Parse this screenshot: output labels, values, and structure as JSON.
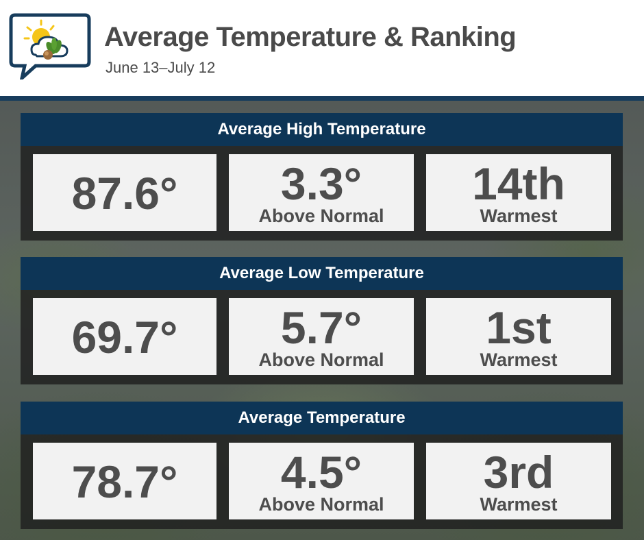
{
  "header": {
    "title": "Average Temperature & Ranking",
    "subtitle": "June 13–July 12",
    "logo_icon": "weather-speech-bubble-icon"
  },
  "colors": {
    "header_band": "#173c5c",
    "section_header": "#0d3556",
    "card_bg": "#f2f2f2",
    "card_text": "#4d4d4d",
    "title_text": "#4a4a4a"
  },
  "sections": [
    {
      "title": "Average High Temperature",
      "value": "87.6°",
      "departure": "3.3°",
      "departure_label": "Above Normal",
      "rank": "14th",
      "rank_label": "Warmest"
    },
    {
      "title": "Average Low Temperature",
      "value": "69.7°",
      "departure": "5.7°",
      "departure_label": "Above Normal",
      "rank": "1st",
      "rank_label": "Warmest"
    },
    {
      "title": "Average Temperature",
      "value": "78.7°",
      "departure": "4.5°",
      "departure_label": "Above Normal",
      "rank": "3rd",
      "rank_label": "Warmest"
    }
  ]
}
